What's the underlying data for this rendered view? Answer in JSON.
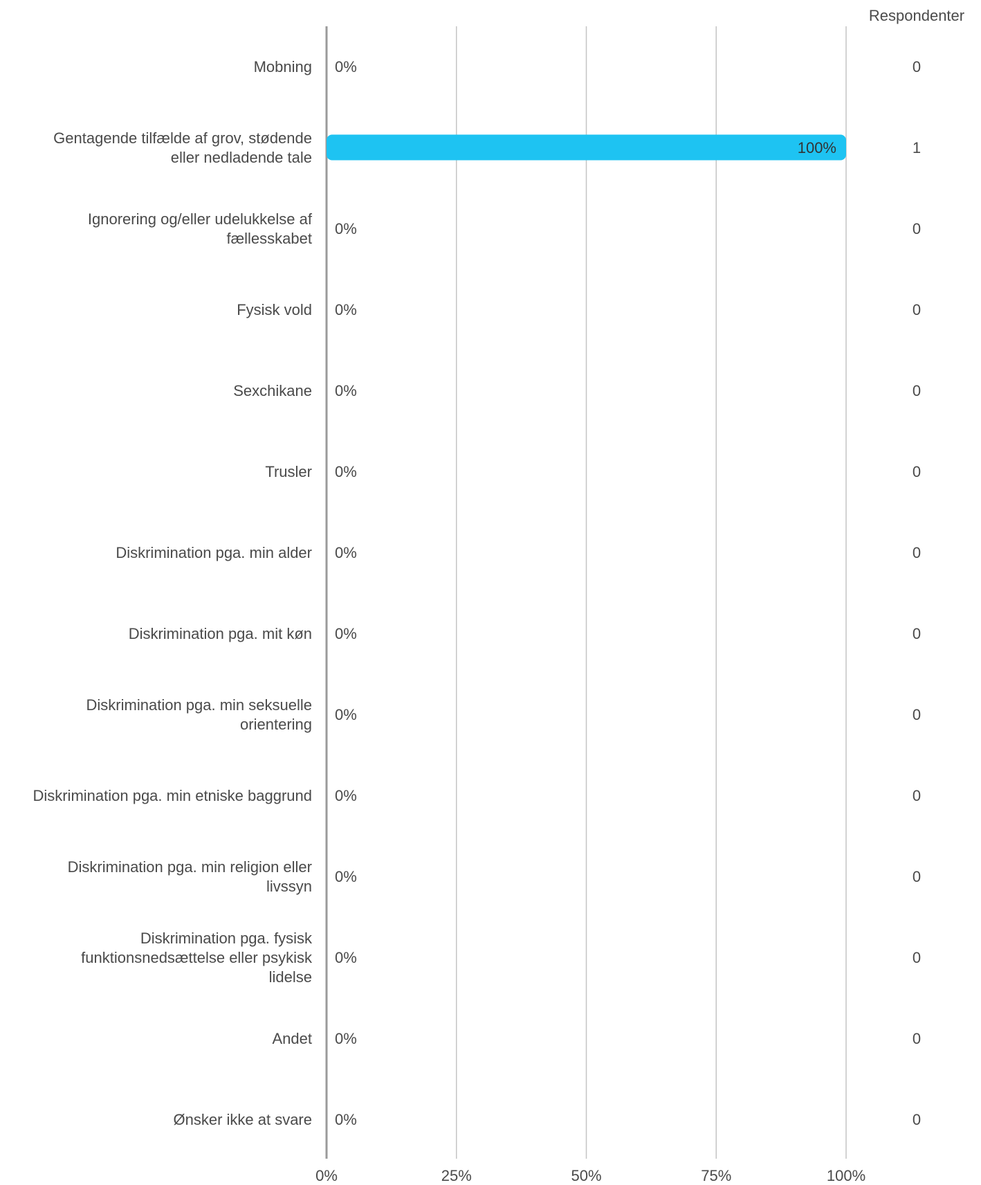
{
  "chart_data": {
    "type": "bar",
    "orientation": "horizontal",
    "categories": [
      "Mobning",
      "Gentagende tilfælde af grov, stødende eller nedladende tale",
      "Ignorering og/eller udelukkelse af fællesskabet",
      "Fysisk vold",
      "Sexchikane",
      "Trusler",
      "Diskrimination pga. min alder",
      "Diskrimination pga. mit køn",
      "Diskrimination pga. min seksuelle orientering",
      "Diskrimination pga. min etniske baggrund",
      "Diskrimination pga. min religion eller livssyn",
      "Diskrimination pga. fysisk funktionsnedsættelse eller psykisk lidelse",
      "Andet",
      "Ønsker ikke at svare"
    ],
    "category_lines": [
      [
        "Mobning"
      ],
      [
        "Gentagende tilfælde af grov, stødende",
        "eller nedladende tale"
      ],
      [
        "Ignorering og/eller udelukkelse af",
        "fællesskabet"
      ],
      [
        "Fysisk vold"
      ],
      [
        "Sexchikane"
      ],
      [
        "Trusler"
      ],
      [
        "Diskrimination pga. min alder"
      ],
      [
        "Diskrimination pga. mit køn"
      ],
      [
        "Diskrimination pga. min seksuelle",
        "orientering"
      ],
      [
        "Diskrimination pga. min etniske baggrund"
      ],
      [
        "Diskrimination pga. min religion eller",
        "livssyn"
      ],
      [
        "Diskrimination pga. fysisk",
        "funktionsnedsættelse eller psykisk",
        "lidelse"
      ],
      [
        "Andet"
      ],
      [
        "Ønsker ikke at svare"
      ]
    ],
    "values": [
      0,
      100,
      0,
      0,
      0,
      0,
      0,
      0,
      0,
      0,
      0,
      0,
      0,
      0
    ],
    "value_labels": [
      "0%",
      "100%",
      "0%",
      "0%",
      "0%",
      "0%",
      "0%",
      "0%",
      "0%",
      "0%",
      "0%",
      "0%",
      "0%",
      "0%"
    ],
    "respondents_header": "Respondenter",
    "respondents": [
      "0",
      "1",
      "0",
      "0",
      "0",
      "0",
      "0",
      "0",
      "0",
      "0",
      "0",
      "0",
      "0",
      "0"
    ],
    "xlim": [
      0,
      100
    ],
    "xticks": [
      "0%",
      "25%",
      "50%",
      "75%",
      "100%"
    ],
    "grid": true,
    "bar_color": "#1ec3f2"
  }
}
